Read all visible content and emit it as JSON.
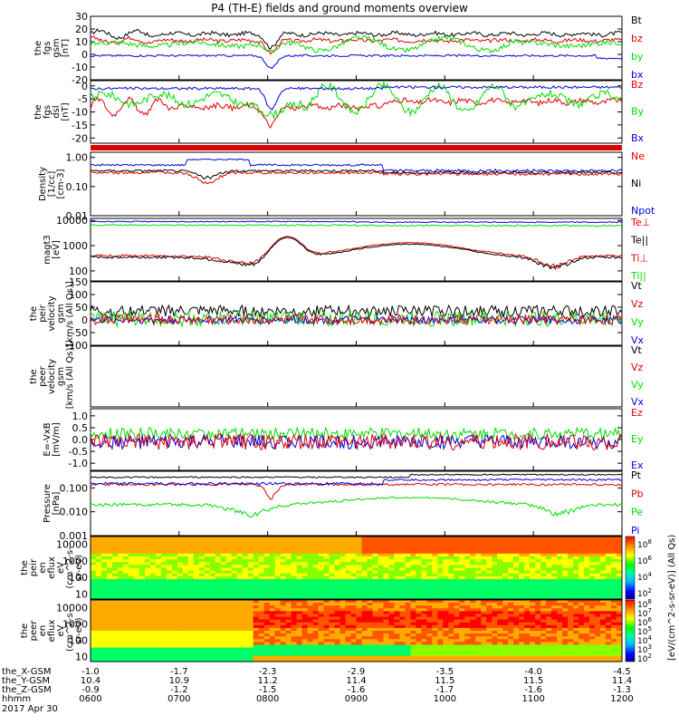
{
  "title": "P4 (TH-E) fields and ground moments overview",
  "colors": {
    "black": "#000000",
    "red": "#e00000",
    "green": "#00dd00",
    "blue": "#0000dd"
  },
  "panels": [
    {
      "id": "fgs_gsm",
      "ylabel": [
        "the",
        "fgs",
        "gsm",
        "[nT]"
      ],
      "ylim": [
        -20,
        30
      ],
      "ticks": [
        -20,
        -10,
        0,
        10,
        20,
        30
      ],
      "tick_labels": [
        "-20",
        "-10",
        "0",
        "10",
        "20",
        "30"
      ],
      "legend": [
        {
          "label": "Bt",
          "color": "#000000"
        },
        {
          "label": "bz",
          "color": "#e00000"
        },
        {
          "label": "by",
          "color": "#00dd00"
        },
        {
          "label": "bx",
          "color": "#0000dd"
        }
      ]
    },
    {
      "id": "fgs_dsl",
      "ylabel": [
        "the",
        "fgs",
        "dsl",
        "[nT]"
      ],
      "ylim": [
        -22,
        2
      ],
      "ticks": [
        -20,
        -15,
        -10,
        -5,
        0
      ],
      "tick_labels": [
        "-20",
        "-15",
        "-10",
        "-5",
        "0"
      ],
      "legend": [
        {
          "label": "Bz",
          "color": "#e00000"
        },
        {
          "label": "By",
          "color": "#00dd00"
        },
        {
          "label": "Bx",
          "color": "#0000dd"
        }
      ]
    },
    {
      "id": "density",
      "ylabel": [
        "Density",
        "[1/cc]",
        "[cm-3]"
      ],
      "log": true,
      "ylim": [
        0.01,
        1.5
      ],
      "ticks": [
        0.01,
        0.1,
        1
      ],
      "tick_labels": [
        "0.01",
        "0.10",
        "1.00"
      ],
      "legend": [
        {
          "label": "Ne",
          "color": "#e00000"
        },
        {
          "label": "Ni",
          "color": "#000000"
        },
        {
          "label": "Npot",
          "color": "#0000dd"
        }
      ]
    },
    {
      "id": "temperature",
      "ylabel": [
        "magt3",
        "[eV]"
      ],
      "log": true,
      "ylim": [
        40,
        12000
      ],
      "ticks": [
        100,
        1000,
        10000
      ],
      "tick_labels": [
        "100",
        "1000",
        "10000"
      ],
      "legend": [
        {
          "label": "Te⊥",
          "color": "#e00000"
        },
        {
          "label": "Te||",
          "color": "#000000"
        },
        {
          "label": "Ti⊥",
          "color": "#e00000"
        },
        {
          "label": "Ti||",
          "color": "#00dd00"
        }
      ]
    },
    {
      "id": "peir_velocity",
      "ylabel": [
        "the",
        "peir",
        "velocity",
        "gsm",
        "[km/s (All Qs)]"
      ],
      "ylim": [
        -100,
        150
      ],
      "ticks": [
        -100,
        -50,
        0,
        50,
        100,
        150
      ],
      "tick_labels": [
        "-100",
        "-50",
        "0",
        "50",
        "100",
        "150"
      ],
      "legend": [
        {
          "label": "Vt",
          "color": "#000000"
        },
        {
          "label": "Vz",
          "color": "#e00000"
        },
        {
          "label": "Vy",
          "color": "#00dd00"
        },
        {
          "label": "Vx",
          "color": "#0000dd"
        }
      ]
    },
    {
      "id": "peer_velocity",
      "ylabel": [
        "the",
        "peer",
        "velocity",
        "gsm",
        "[km/s (All Qs)]"
      ],
      "ylim": [
        0,
        1
      ],
      "ticks": [],
      "tick_labels": [],
      "legend": [
        {
          "label": "Vt",
          "color": "#000000"
        },
        {
          "label": "Vz",
          "color": "#e00000"
        },
        {
          "label": "Vy",
          "color": "#00dd00"
        },
        {
          "label": "Vx",
          "color": "#0000dd"
        }
      ]
    },
    {
      "id": "efield",
      "ylabel": [
        "E=-VxB",
        "[mV/m]"
      ],
      "ylim": [
        -1.3,
        1.3
      ],
      "ticks": [
        -1.0,
        -0.5,
        0,
        0.5,
        1.0
      ],
      "tick_labels": [
        "-1.0",
        "-0.5",
        "0.0",
        "0.5",
        "1.0"
      ],
      "legend": [
        {
          "label": "Ez",
          "color": "#e00000"
        },
        {
          "label": "Ey",
          "color": "#00dd00"
        },
        {
          "label": "Ex",
          "color": "#0000dd"
        }
      ]
    },
    {
      "id": "pressure",
      "ylabel": [
        "Pressure",
        "[nPa]"
      ],
      "log": true,
      "ylim": [
        0.001,
        0.5
      ],
      "ticks": [
        0.001,
        0.01,
        0.1
      ],
      "tick_labels": [
        "0.001",
        "0.010",
        "0.100"
      ],
      "legend": [
        {
          "label": "Pt",
          "color": "#000000"
        },
        {
          "label": "Pb",
          "color": "#e00000"
        },
        {
          "label": "Pe",
          "color": "#00dd00"
        },
        {
          "label": "Pi",
          "color": "#0000dd"
        }
      ]
    },
    {
      "id": "peir_spec",
      "ylabel": [
        "the",
        "peir",
        "en",
        "eflux",
        "eV",
        "(cm^2-s-",
        "sr-eV)"
      ],
      "log": true,
      "ylim": [
        5,
        30000
      ],
      "ticks": [
        10,
        100,
        1000,
        10000
      ],
      "tick_labels": [
        "10",
        "100",
        "1000",
        "10000"
      ],
      "legend": []
    },
    {
      "id": "peer_spec",
      "ylabel": [
        "the",
        "peer",
        "en",
        "eflux",
        "eV",
        "(cm^2-s-",
        "sr-eV)"
      ],
      "log": true,
      "ylim": [
        5,
        30000
      ],
      "ticks": [
        10,
        100,
        1000,
        10000
      ],
      "tick_labels": [
        "10",
        "100",
        "1000",
        "10000"
      ],
      "legend": []
    }
  ],
  "colorbar": {
    "tick_labels": [
      "10^8",
      "10^6",
      "10^4",
      "10^2",
      "10^8",
      "10^7",
      "10^6",
      "10^5",
      "10^4",
      "10^3",
      "10^2"
    ],
    "label": "[eV/(cm^2-s-sr-eV)] (All Qs)"
  },
  "xaxis": {
    "rows": [
      {
        "label": "the_X-GSM",
        "values": [
          "-1.0",
          "-1.7",
          "-2.3",
          "-2.9",
          "-3.5",
          "-4.0",
          "-4.5"
        ]
      },
      {
        "label": "the_Y-GSM",
        "values": [
          "10.4",
          "10.9",
          "11.2",
          "11.4",
          "11.5",
          "11.5",
          "11.4"
        ]
      },
      {
        "label": "the_Z-GSM",
        "values": [
          "-0.9",
          "-1.2",
          "-1.5",
          "-1.6",
          "-1.7",
          "-1.6",
          "-1.3"
        ]
      },
      {
        "label": "hhmm",
        "values": [
          "0600",
          "0700",
          "0800",
          "0900",
          "1000",
          "1100",
          "1200"
        ]
      }
    ],
    "date": "2017 Apr 30"
  },
  "chart_data": {
    "type": "line",
    "title": "P4 (TH-E) fields and ground moments overview",
    "x_unit": "UT hhmm",
    "x_range": [
      "0600",
      "1200"
    ],
    "x_ticks": [
      "0600",
      "0700",
      "0800",
      "0900",
      "1000",
      "1100",
      "1200"
    ],
    "series_approx": {
      "fgs_gsm": {
        "Bt": 15,
        "bz": 10,
        "by": 8,
        "bx": -1
      },
      "fgs_dsl": {
        "Bz": -8,
        "By": -5,
        "Bx": -1
      },
      "density": {
        "Ne": 0.3,
        "Ni": 0.35,
        "Npot": 0.5
      },
      "temperature": {
        "Te||": 1000,
        "Ti||": 7000,
        "Ti⊥": 9000
      },
      "pressure": {
        "Pt": 0.25,
        "Pb": 0.13,
        "Pe": 0.02,
        "Pi": 0.13
      }
    }
  }
}
